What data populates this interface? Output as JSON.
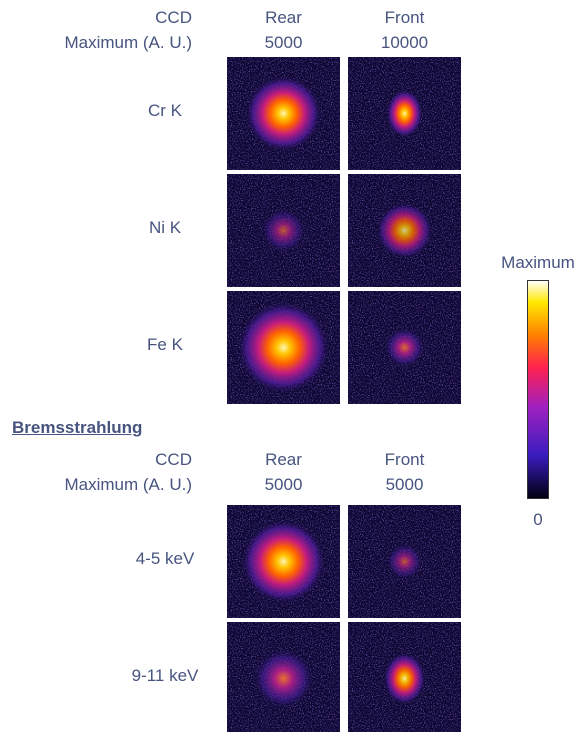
{
  "groups": [
    {
      "header": {
        "label_1": "CCD",
        "label_2": "Maximum (A. U.)"
      },
      "columns": [
        {
          "name": "Rear",
          "maximum": 5000
        },
        {
          "name": "Front",
          "maximum": 10000
        }
      ],
      "rows": [
        {
          "label": "Cr K"
        },
        {
          "label": "Ni K"
        },
        {
          "label": "Fe K"
        }
      ]
    },
    {
      "title": "Bremsstrahlung",
      "header": {
        "label_1": "CCD",
        "label_2": "Maximum (A. U.)"
      },
      "columns": [
        {
          "name": "Rear",
          "maximum": 5000
        },
        {
          "name": "Front",
          "maximum": 5000
        }
      ],
      "rows": [
        {
          "label": "4-5 keV"
        },
        {
          "label": "9-11 keV"
        }
      ]
    }
  ],
  "colorbar": {
    "top_label": "Maximum",
    "bottom_label": "0"
  }
}
